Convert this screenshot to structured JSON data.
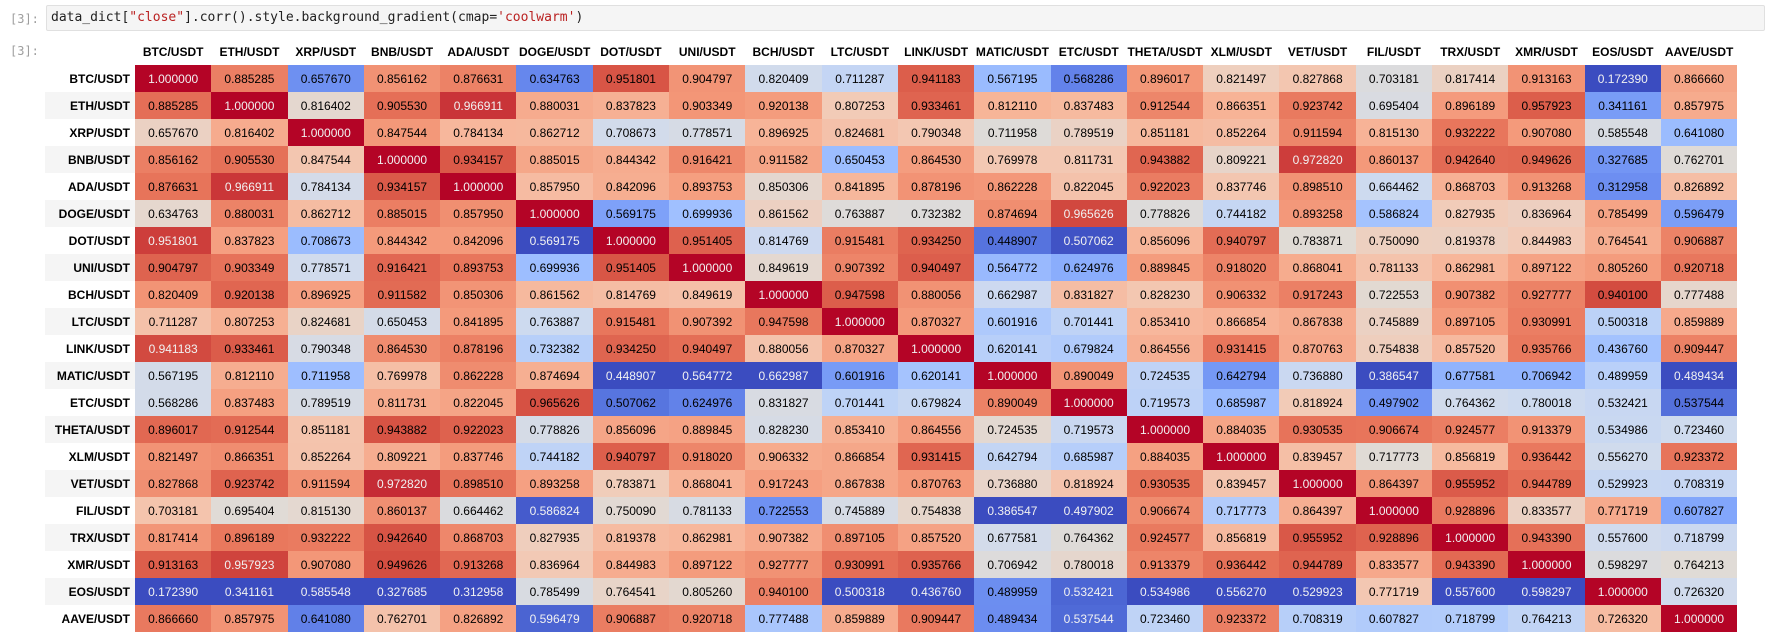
{
  "notebook": {
    "input_prompt": "[3]:",
    "output_prompt": "[3]:",
    "code": {
      "var": "data_dict",
      "open_bracket": "[",
      "key": "\"close\"",
      "rest": "].corr().style.background_gradient(cmap=",
      "cmap": "'coolwarm'",
      "close_paren": ")"
    }
  },
  "table": {
    "columns": [
      "BTC/USDT",
      "ETH/USDT",
      "XRP/USDT",
      "BNB/USDT",
      "ADA/USDT",
      "DOGE/USDT",
      "DOT/USDT",
      "UNI/USDT",
      "BCH/USDT",
      "LTC/USDT",
      "LINK/USDT",
      "MATIC/USDT",
      "ETC/USDT",
      "THETA/USDT",
      "XLM/USDT",
      "VET/USDT",
      "FIL/USDT",
      "TRX/USDT",
      "XMR/USDT",
      "EOS/USDT",
      "AAVE/USDT"
    ],
    "rows": [
      {
        "label": "BTC/USDT",
        "values": [
          "1.000000",
          "0.885285",
          "0.657670",
          "0.856162",
          "0.876631",
          "0.634763",
          "0.951801",
          "0.904797",
          "0.820409",
          "0.711287",
          "0.941183",
          "0.567195",
          "0.568286",
          "0.896017",
          "0.821497",
          "0.827868",
          "0.703181",
          "0.817414",
          "0.913163",
          "0.172390",
          "0.866660"
        ]
      },
      {
        "label": "ETH/USDT",
        "values": [
          "0.885285",
          "1.000000",
          "0.816402",
          "0.905530",
          "0.966911",
          "0.880031",
          "0.837823",
          "0.903349",
          "0.920138",
          "0.807253",
          "0.933461",
          "0.812110",
          "0.837483",
          "0.912544",
          "0.866351",
          "0.923742",
          "0.695404",
          "0.896189",
          "0.957923",
          "0.341161",
          "0.857975"
        ]
      },
      {
        "label": "XRP/USDT",
        "values": [
          "0.657670",
          "0.816402",
          "1.000000",
          "0.847544",
          "0.784134",
          "0.862712",
          "0.708673",
          "0.778571",
          "0.896925",
          "0.824681",
          "0.790348",
          "0.711958",
          "0.789519",
          "0.851181",
          "0.852264",
          "0.911594",
          "0.815130",
          "0.932222",
          "0.907080",
          "0.585548",
          "0.641080"
        ]
      },
      {
        "label": "BNB/USDT",
        "values": [
          "0.856162",
          "0.905530",
          "0.847544",
          "1.000000",
          "0.934157",
          "0.885015",
          "0.844342",
          "0.916421",
          "0.911582",
          "0.650453",
          "0.864530",
          "0.769978",
          "0.811731",
          "0.943882",
          "0.809221",
          "0.972820",
          "0.860137",
          "0.942640",
          "0.949626",
          "0.327685",
          "0.762701"
        ]
      },
      {
        "label": "ADA/USDT",
        "values": [
          "0.876631",
          "0.966911",
          "0.784134",
          "0.934157",
          "1.000000",
          "0.857950",
          "0.842096",
          "0.893753",
          "0.850306",
          "0.841895",
          "0.878196",
          "0.862228",
          "0.822045",
          "0.922023",
          "0.837746",
          "0.898510",
          "0.664462",
          "0.868703",
          "0.913268",
          "0.312958",
          "0.826892"
        ]
      },
      {
        "label": "DOGE/USDT",
        "values": [
          "0.634763",
          "0.880031",
          "0.862712",
          "0.885015",
          "0.857950",
          "1.000000",
          "0.569175",
          "0.699936",
          "0.861562",
          "0.763887",
          "0.732382",
          "0.874694",
          "0.965626",
          "0.778826",
          "0.744182",
          "0.893258",
          "0.586824",
          "0.827935",
          "0.836964",
          "0.785499",
          "0.596479"
        ]
      },
      {
        "label": "DOT/USDT",
        "values": [
          "0.951801",
          "0.837823",
          "0.708673",
          "0.844342",
          "0.842096",
          "0.569175",
          "1.000000",
          "0.951405",
          "0.814769",
          "0.915481",
          "0.934250",
          "0.448907",
          "0.507062",
          "0.856096",
          "0.940797",
          "0.783871",
          "0.750090",
          "0.819378",
          "0.844983",
          "0.764541",
          "0.906887"
        ]
      },
      {
        "label": "UNI/USDT",
        "values": [
          "0.904797",
          "0.903349",
          "0.778571",
          "0.916421",
          "0.893753",
          "0.699936",
          "0.951405",
          "1.000000",
          "0.849619",
          "0.907392",
          "0.940497",
          "0.564772",
          "0.624976",
          "0.889845",
          "0.918020",
          "0.868041",
          "0.781133",
          "0.862981",
          "0.897122",
          "0.805260",
          "0.920718"
        ]
      },
      {
        "label": "BCH/USDT",
        "values": [
          "0.820409",
          "0.920138",
          "0.896925",
          "0.911582",
          "0.850306",
          "0.861562",
          "0.814769",
          "0.849619",
          "1.000000",
          "0.947598",
          "0.880056",
          "0.662987",
          "0.831827",
          "0.828230",
          "0.906332",
          "0.917243",
          "0.722553",
          "0.907382",
          "0.927777",
          "0.940100",
          "0.777488"
        ]
      },
      {
        "label": "LTC/USDT",
        "values": [
          "0.711287",
          "0.807253",
          "0.824681",
          "0.650453",
          "0.841895",
          "0.763887",
          "0.915481",
          "0.907392",
          "0.947598",
          "1.000000",
          "0.870327",
          "0.601916",
          "0.701441",
          "0.853410",
          "0.866854",
          "0.867838",
          "0.745889",
          "0.897105",
          "0.930991",
          "0.500318",
          "0.859889"
        ]
      },
      {
        "label": "LINK/USDT",
        "values": [
          "0.941183",
          "0.933461",
          "0.790348",
          "0.864530",
          "0.878196",
          "0.732382",
          "0.934250",
          "0.940497",
          "0.880056",
          "0.870327",
          "1.000000",
          "0.620141",
          "0.679824",
          "0.864556",
          "0.931415",
          "0.870763",
          "0.754838",
          "0.857520",
          "0.935766",
          "0.436760",
          "0.909447"
        ]
      },
      {
        "label": "MATIC/USDT",
        "values": [
          "0.567195",
          "0.812110",
          "0.711958",
          "0.769978",
          "0.862228",
          "0.874694",
          "0.448907",
          "0.564772",
          "0.662987",
          "0.601916",
          "0.620141",
          "1.000000",
          "0.890049",
          "0.724535",
          "0.642794",
          "0.736880",
          "0.386547",
          "0.677581",
          "0.706942",
          "0.489959",
          "0.489434"
        ]
      },
      {
        "label": "ETC/USDT",
        "values": [
          "0.568286",
          "0.837483",
          "0.789519",
          "0.811731",
          "0.822045",
          "0.965626",
          "0.507062",
          "0.624976",
          "0.831827",
          "0.701441",
          "0.679824",
          "0.890049",
          "1.000000",
          "0.719573",
          "0.685987",
          "0.818924",
          "0.497902",
          "0.764362",
          "0.780018",
          "0.532421",
          "0.537544"
        ]
      },
      {
        "label": "THETA/USDT",
        "values": [
          "0.896017",
          "0.912544",
          "0.851181",
          "0.943882",
          "0.922023",
          "0.778826",
          "0.856096",
          "0.889845",
          "0.828230",
          "0.853410",
          "0.864556",
          "0.724535",
          "0.719573",
          "1.000000",
          "0.884035",
          "0.930535",
          "0.906674",
          "0.924577",
          "0.913379",
          "0.534986",
          "0.723460"
        ]
      },
      {
        "label": "XLM/USDT",
        "values": [
          "0.821497",
          "0.866351",
          "0.852264",
          "0.809221",
          "0.837746",
          "0.744182",
          "0.940797",
          "0.918020",
          "0.906332",
          "0.866854",
          "0.931415",
          "0.642794",
          "0.685987",
          "0.884035",
          "1.000000",
          "0.839457",
          "0.717773",
          "0.856819",
          "0.936442",
          "0.556270",
          "0.923372"
        ]
      },
      {
        "label": "VET/USDT",
        "values": [
          "0.827868",
          "0.923742",
          "0.911594",
          "0.972820",
          "0.898510",
          "0.893258",
          "0.783871",
          "0.868041",
          "0.917243",
          "0.867838",
          "0.870763",
          "0.736880",
          "0.818924",
          "0.930535",
          "0.839457",
          "1.000000",
          "0.864397",
          "0.955952",
          "0.944789",
          "0.529923",
          "0.708319"
        ]
      },
      {
        "label": "FIL/USDT",
        "values": [
          "0.703181",
          "0.695404",
          "0.815130",
          "0.860137",
          "0.664462",
          "0.586824",
          "0.750090",
          "0.781133",
          "0.722553",
          "0.745889",
          "0.754838",
          "0.386547",
          "0.497902",
          "0.906674",
          "0.717773",
          "0.864397",
          "1.000000",
          "0.928896",
          "0.833577",
          "0.771719",
          "0.607827"
        ]
      },
      {
        "label": "TRX/USDT",
        "values": [
          "0.817414",
          "0.896189",
          "0.932222",
          "0.942640",
          "0.868703",
          "0.827935",
          "0.819378",
          "0.862981",
          "0.907382",
          "0.897105",
          "0.857520",
          "0.677581",
          "0.764362",
          "0.924577",
          "0.856819",
          "0.955952",
          "0.928896",
          "1.000000",
          "0.943390",
          "0.557600",
          "0.718799"
        ]
      },
      {
        "label": "XMR/USDT",
        "values": [
          "0.913163",
          "0.957923",
          "0.907080",
          "0.949626",
          "0.913268",
          "0.836964",
          "0.844983",
          "0.897122",
          "0.927777",
          "0.930991",
          "0.935766",
          "0.706942",
          "0.780018",
          "0.913379",
          "0.936442",
          "0.944789",
          "0.833577",
          "0.943390",
          "1.000000",
          "0.598297",
          "0.764213"
        ]
      },
      {
        "label": "EOS/USDT",
        "values": [
          "0.172390",
          "0.341161",
          "0.585548",
          "0.327685",
          "0.312958",
          "0.785499",
          "0.764541",
          "0.805260",
          "0.940100",
          "0.500318",
          "0.436760",
          "0.489959",
          "0.532421",
          "0.534986",
          "0.556270",
          "0.529923",
          "0.771719",
          "0.557600",
          "0.598297",
          "1.000000",
          "0.726320"
        ]
      },
      {
        "label": "AAVE/USDT",
        "values": [
          "0.866660",
          "0.857975",
          "0.641080",
          "0.762701",
          "0.826892",
          "0.596479",
          "0.906887",
          "0.920718",
          "0.777488",
          "0.859889",
          "0.909447",
          "0.489434",
          "0.537544",
          "0.723460",
          "0.923372",
          "0.708319",
          "0.607827",
          "0.718799",
          "0.764213",
          "0.726320",
          "1.000000"
        ]
      }
    ]
  },
  "colormap": {
    "name": "coolwarm",
    "stops": [
      "#3b4cc0",
      "#4e69d6",
      "#6788ee",
      "#82a6fb",
      "#9fbfff",
      "#b9d0f9",
      "#d0dbee",
      "#e0dbd6",
      "#f2cbb7",
      "#f7b599",
      "#f49a7b",
      "#e8765c",
      "#d55042",
      "#b40426"
    ]
  }
}
